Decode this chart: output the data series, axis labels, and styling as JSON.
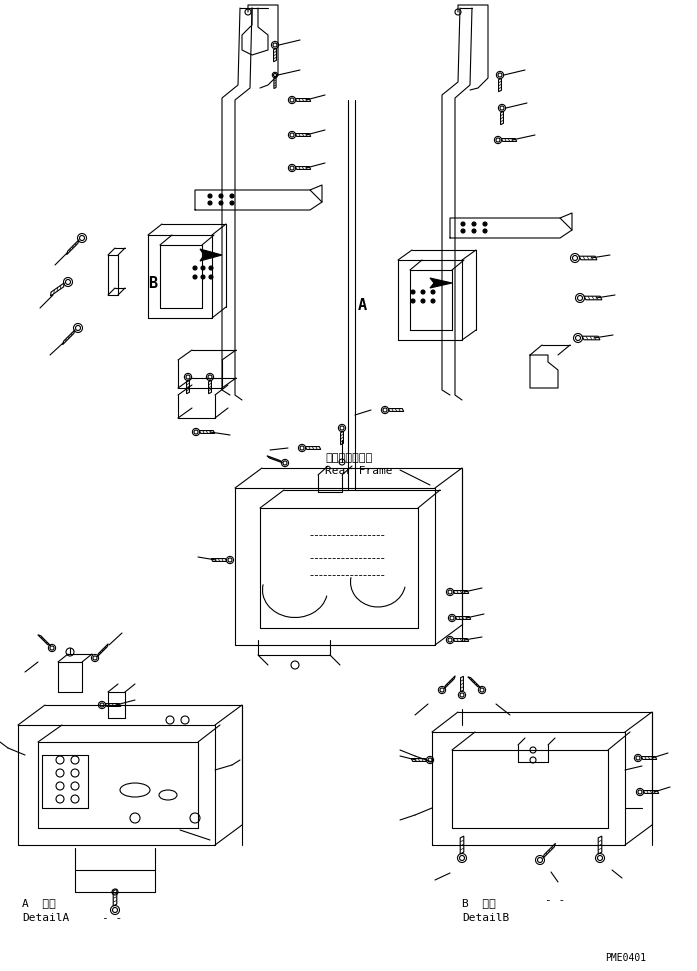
{
  "bg_color": "#ffffff",
  "line_color": "#000000",
  "line_width": 0.8,
  "fig_width": 6.97,
  "fig_height": 9.71,
  "dpi": 100,
  "label_A": "A",
  "label_B": "B",
  "text_rear_frame_jp": "リヤーフレーム",
  "text_rear_frame_en": "Rear Frame",
  "text_detail_A_jp": "A  詳細",
  "text_detail_A_en": "DetailA",
  "text_detail_B_jp": "B  詳細",
  "text_detail_B_en": "DetailB",
  "text_pme": "PME0401",
  "font_size_label": 11,
  "font_size_small": 7,
  "font_size_pme": 7
}
